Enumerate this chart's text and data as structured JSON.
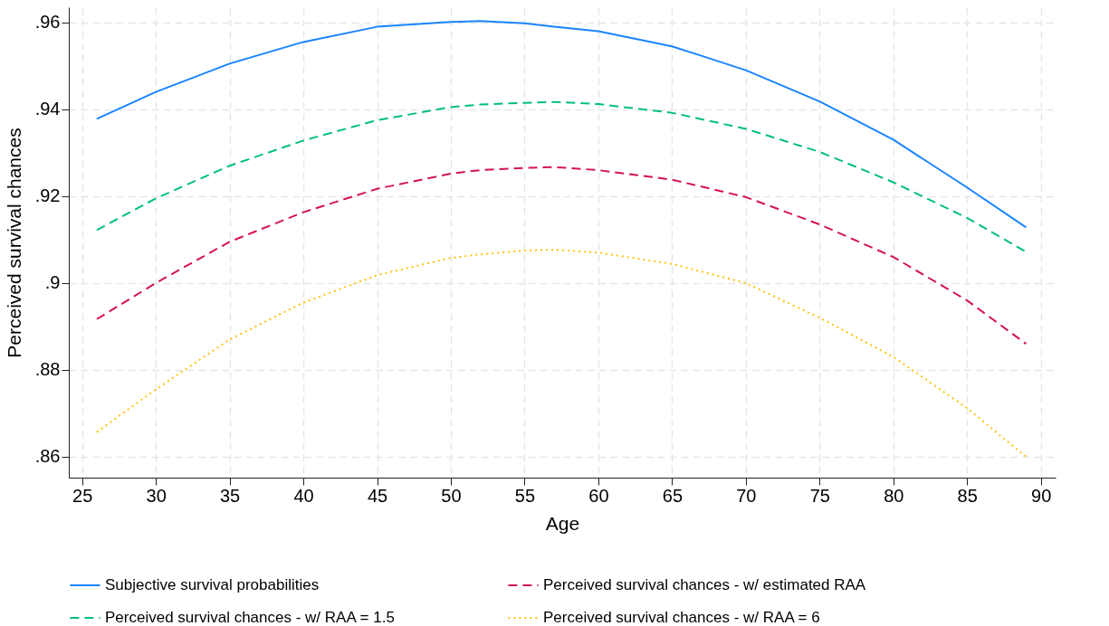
{
  "chart_data": {
    "type": "line",
    "xlabel": "Age",
    "ylabel": "Perceived survival chances",
    "x": [
      26,
      30,
      35,
      40,
      45,
      50,
      52,
      55,
      57,
      60,
      65,
      70,
      75,
      80,
      85,
      89
    ],
    "series": [
      {
        "name": "Subjective survival probabilities",
        "color": "#1a85ff",
        "line_style": "solid",
        "values": [
          0.9378,
          0.944,
          0.9505,
          0.9555,
          0.959,
          0.9601,
          0.9603,
          0.9598,
          0.959,
          0.958,
          0.9545,
          0.949,
          0.9418,
          0.933,
          0.922,
          0.9128
        ]
      },
      {
        "name": "Perceived survival chances - w/ estimated RAA",
        "color": "#d41159",
        "line_style": "dashed",
        "values": [
          0.8917,
          0.9,
          0.9095,
          0.9163,
          0.9217,
          0.9252,
          0.926,
          0.9265,
          0.9267,
          0.926,
          0.9238,
          0.9198,
          0.9135,
          0.906,
          0.896,
          0.886
        ]
      },
      {
        "name": "Perceived survival chances - w/ RAA = 1.5",
        "color": "#00bf7f",
        "line_style": "dashed",
        "values": [
          0.9122,
          0.9195,
          0.927,
          0.9328,
          0.9375,
          0.9405,
          0.9411,
          0.9415,
          0.9417,
          0.9412,
          0.9392,
          0.9355,
          0.9302,
          0.9232,
          0.915,
          0.9072
        ]
      },
      {
        "name": "Perceived survival chances - w/ RAA = 6",
        "color": "#ffc20a",
        "line_style": "dotted",
        "values": [
          0.8657,
          0.8755,
          0.887,
          0.8955,
          0.9018,
          0.9058,
          0.9066,
          0.9075,
          0.9077,
          0.907,
          0.9044,
          0.9,
          0.892,
          0.883,
          0.8712,
          0.86
        ]
      }
    ],
    "xlim": [
      24.1,
      91
    ],
    "xticks": [
      25,
      30,
      35,
      40,
      45,
      50,
      55,
      60,
      65,
      70,
      75,
      80,
      85,
      90
    ],
    "ylim": [
      0.8552,
      0.9635
    ],
    "yticks": [
      {
        "value": 0.86,
        "label": ".86"
      },
      {
        "value": 0.88,
        "label": ".88"
      },
      {
        "value": 0.9,
        "label": ".9"
      },
      {
        "value": 0.92,
        "label": ".92"
      },
      {
        "value": 0.94,
        "label": ".94"
      },
      {
        "value": 0.96,
        "label": ".96"
      }
    ],
    "grid": true,
    "legend": "bottom",
    "marker": "none"
  }
}
